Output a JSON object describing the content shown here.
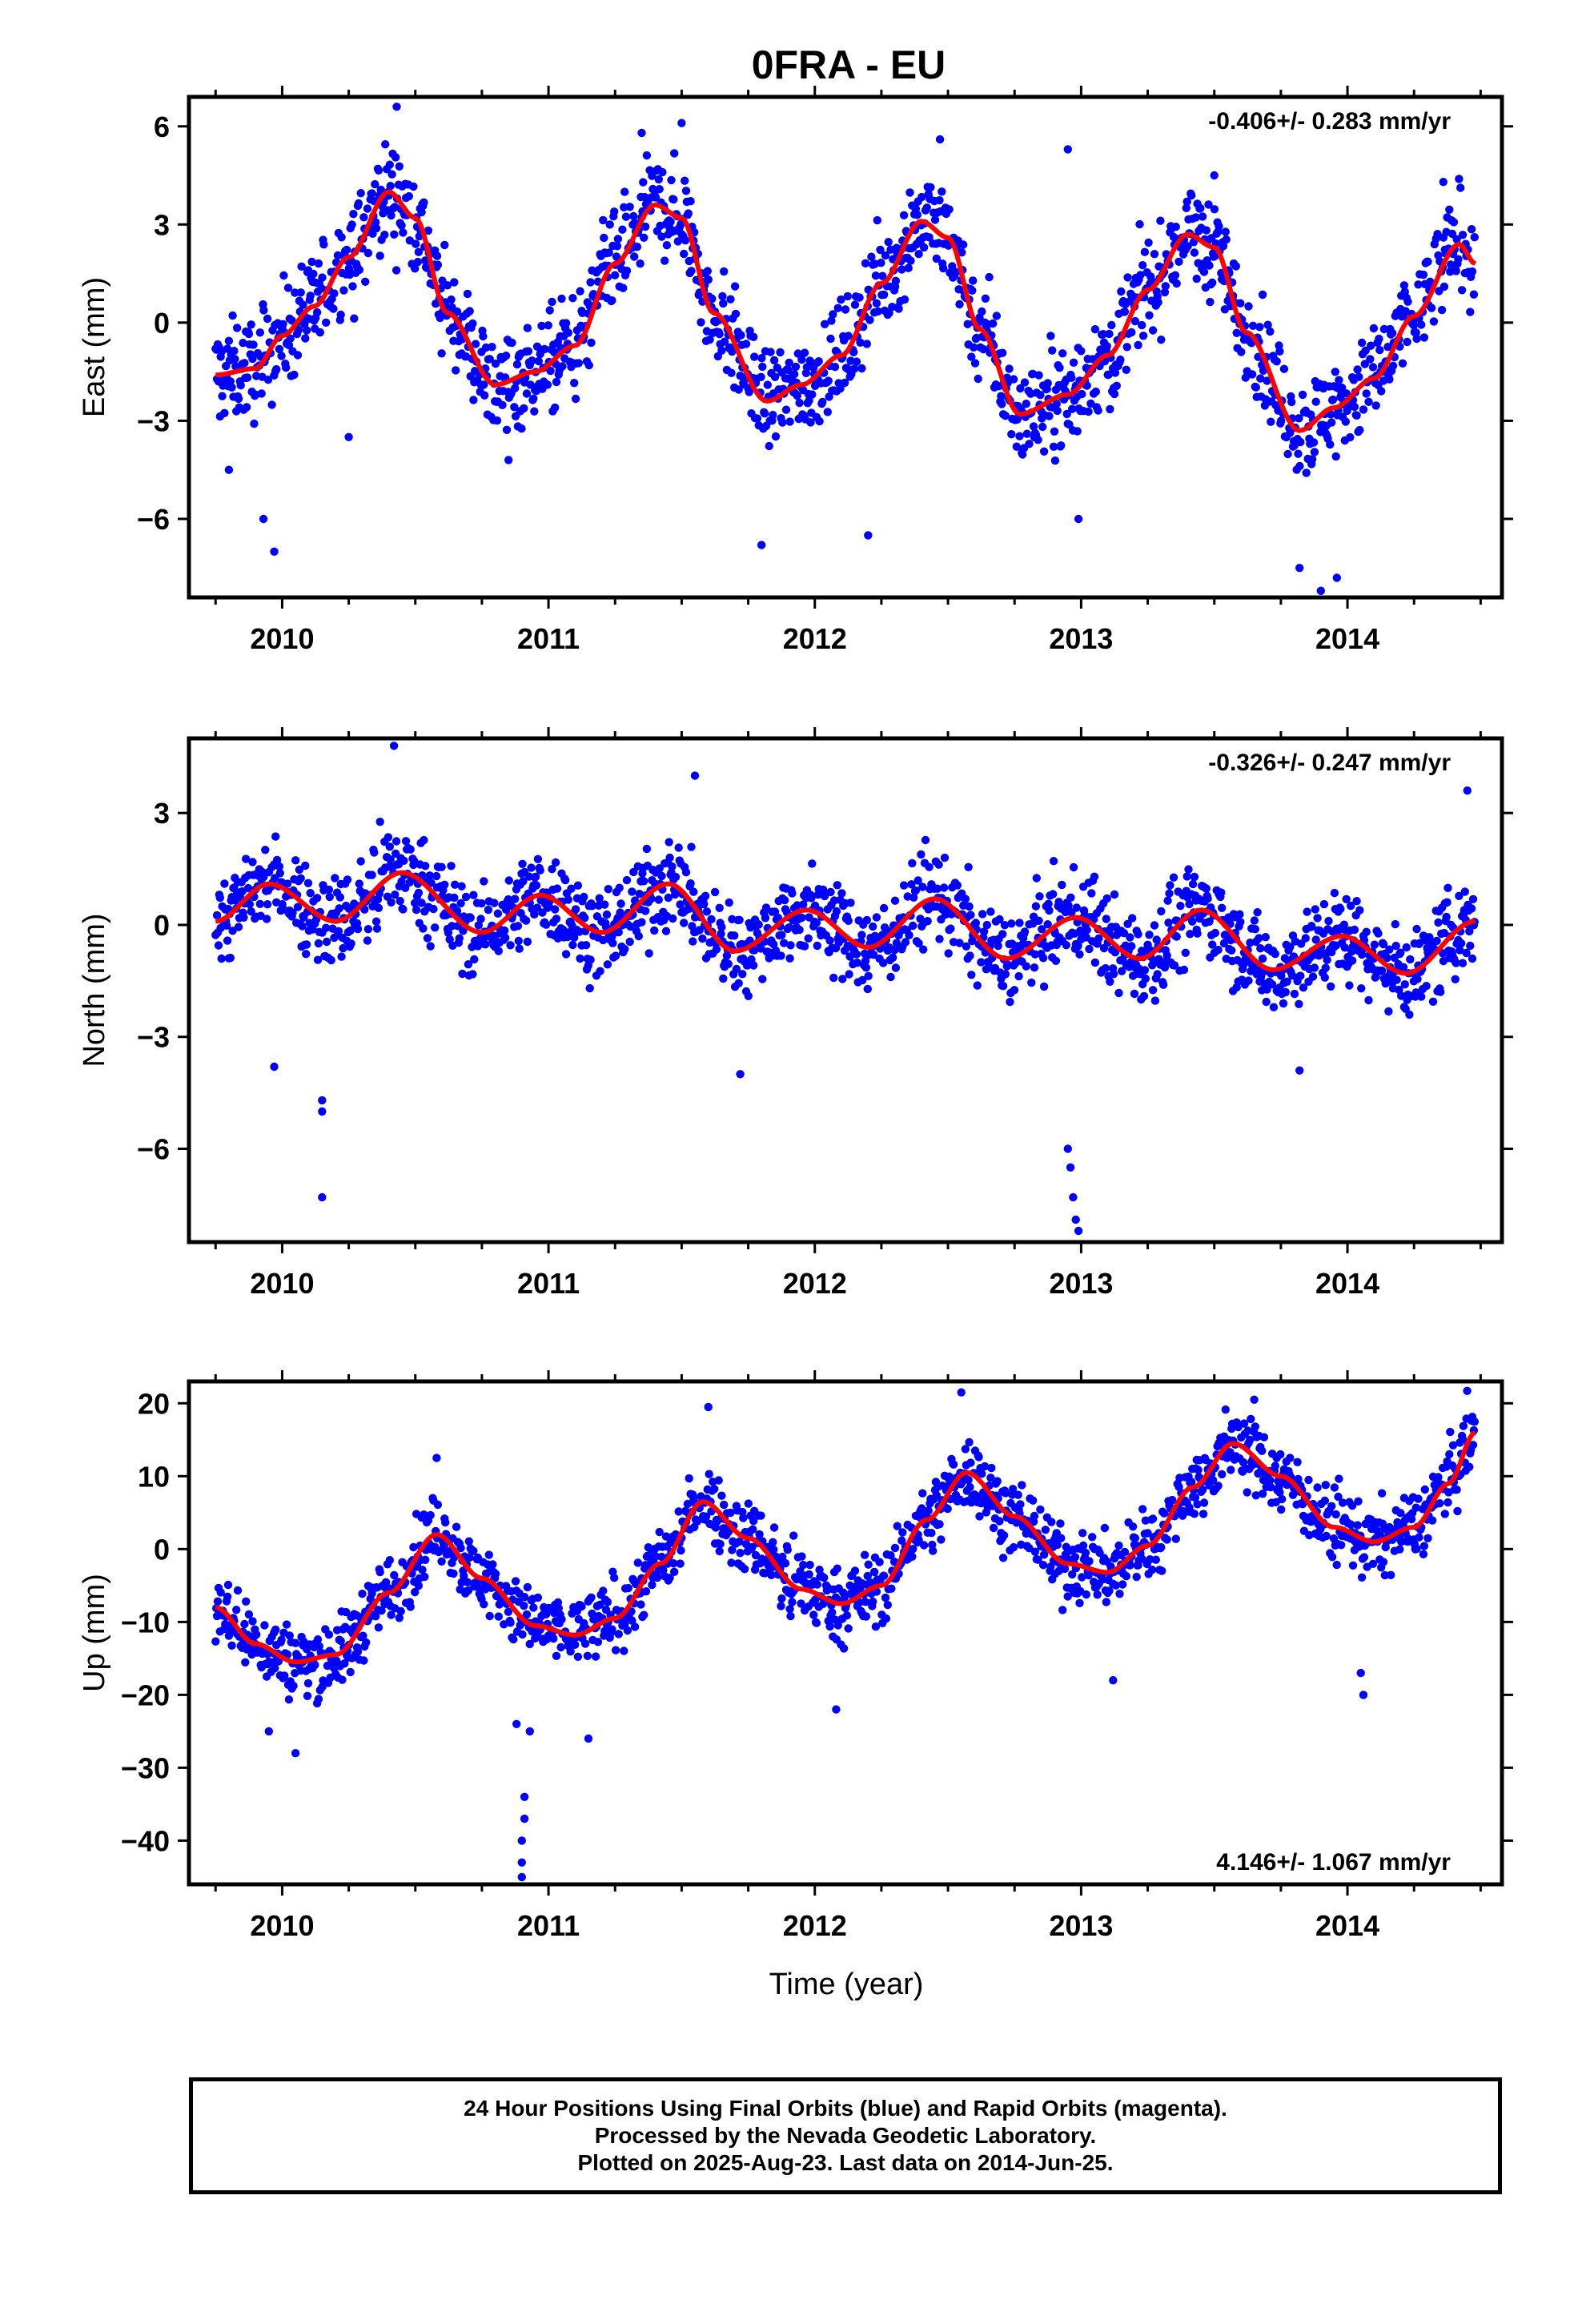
{
  "title": "0FRA - EU",
  "xlabel": "Time (year)",
  "colors": {
    "points": "#0000ff",
    "fit": "#ff0000",
    "axis": "#000000"
  },
  "footer": {
    "line1": "24 Hour Positions Using Final Orbits (blue) and Rapid Orbits (magenta).",
    "line2": "Processed by the Nevada Geodetic Laboratory.",
    "line3": "Plotted on 2025-Aug-23. Last data on 2014-Jun-25."
  },
  "chart_data": [
    {
      "type": "scatter",
      "component": "East",
      "ylabel": "East (mm)",
      "xlim": [
        2009.65,
        2014.58
      ],
      "ylim": [
        -8.4,
        6.9
      ],
      "xticks": [
        "2010",
        "2011",
        "2012",
        "2013",
        "2014"
      ],
      "yticks": [
        "6",
        "3",
        "0",
        "−3",
        "−6"
      ],
      "ytick_values": [
        6,
        3,
        0,
        -3,
        -6
      ],
      "x_start": 2009.75,
      "x_end": 2014.48,
      "rate_label": "-0.406+/- 0.283 mm/yr",
      "rate_position": "top-right",
      "fit": {
        "description": "red seasonal fit",
        "points": [
          [
            2009.75,
            -1.6
          ],
          [
            2009.9,
            -1.4
          ],
          [
            2010.0,
            -0.4
          ],
          [
            2010.12,
            0.5
          ],
          [
            2010.25,
            2.0
          ],
          [
            2010.4,
            4.0
          ],
          [
            2010.5,
            3.2
          ],
          [
            2010.62,
            0.3
          ],
          [
            2010.8,
            -1.9
          ],
          [
            2010.95,
            -1.5
          ],
          [
            2011.1,
            -0.7
          ],
          [
            2011.25,
            1.8
          ],
          [
            2011.4,
            3.6
          ],
          [
            2011.5,
            3.2
          ],
          [
            2011.62,
            0.3
          ],
          [
            2011.82,
            -2.4
          ],
          [
            2011.95,
            -1.9
          ],
          [
            2012.1,
            -1.0
          ],
          [
            2012.25,
            1.2
          ],
          [
            2012.4,
            3.1
          ],
          [
            2012.5,
            2.6
          ],
          [
            2012.62,
            -0.2
          ],
          [
            2012.77,
            -2.8
          ],
          [
            2012.95,
            -2.2
          ],
          [
            2013.1,
            -1.0
          ],
          [
            2013.25,
            1.0
          ],
          [
            2013.4,
            2.7
          ],
          [
            2013.5,
            2.3
          ],
          [
            2013.62,
            -0.3
          ],
          [
            2013.82,
            -3.3
          ],
          [
            2013.95,
            -2.6
          ],
          [
            2014.1,
            -1.7
          ],
          [
            2014.25,
            0.2
          ],
          [
            2014.42,
            2.4
          ],
          [
            2014.48,
            1.8
          ]
        ]
      },
      "points_summary": {
        "count_approx": 1700,
        "scatter_mm": 1.4,
        "outliers": [
          [
            2009.8,
            -4.5
          ],
          [
            2009.93,
            -6.0
          ],
          [
            2009.97,
            -7.0
          ],
          [
            2010.25,
            -3.5
          ],
          [
            2010.43,
            6.6
          ],
          [
            2010.85,
            -4.2
          ],
          [
            2011.35,
            5.8
          ],
          [
            2011.5,
            6.1
          ],
          [
            2011.8,
            -6.8
          ],
          [
            2012.2,
            -6.5
          ],
          [
            2012.47,
            5.6
          ],
          [
            2012.95,
            5.3
          ],
          [
            2012.99,
            -6.0
          ],
          [
            2013.5,
            4.5
          ],
          [
            2013.82,
            -7.5
          ],
          [
            2013.9,
            -8.2
          ],
          [
            2013.96,
            -7.8
          ],
          [
            2014.36,
            4.3
          ]
        ]
      }
    },
    {
      "type": "scatter",
      "component": "North",
      "ylabel": "North (mm)",
      "xlim": [
        2009.65,
        2014.58
      ],
      "ylim": [
        -8.5,
        5.0
      ],
      "xticks": [
        "2010",
        "2011",
        "2012",
        "2013",
        "2014"
      ],
      "yticks": [
        "3",
        "0",
        "−3",
        "−6"
      ],
      "ytick_values": [
        3,
        0,
        -3,
        -6
      ],
      "x_start": 2009.75,
      "x_end": 2014.48,
      "rate_label": "-0.326+/- 0.247 mm/yr",
      "rate_position": "top-right",
      "fit": {
        "description": "red seasonal fit",
        "points": [
          [
            2009.75,
            0.1
          ],
          [
            2009.95,
            1.1
          ],
          [
            2010.2,
            0.1
          ],
          [
            2010.45,
            1.4
          ],
          [
            2010.75,
            -0.2
          ],
          [
            2010.97,
            0.8
          ],
          [
            2011.2,
            -0.2
          ],
          [
            2011.45,
            1.1
          ],
          [
            2011.7,
            -0.7
          ],
          [
            2011.97,
            0.4
          ],
          [
            2012.2,
            -0.6
          ],
          [
            2012.45,
            0.7
          ],
          [
            2012.72,
            -0.9
          ],
          [
            2012.98,
            0.2
          ],
          [
            2013.22,
            -0.9
          ],
          [
            2013.45,
            0.4
          ],
          [
            2013.72,
            -1.2
          ],
          [
            2013.98,
            -0.3
          ],
          [
            2014.22,
            -1.3
          ],
          [
            2014.48,
            0.1
          ]
        ]
      },
      "points_summary": {
        "count_approx": 1700,
        "scatter_mm": 1.1,
        "outliers": [
          [
            2009.97,
            -3.8
          ],
          [
            2010.15,
            -4.7
          ],
          [
            2010.15,
            -5.0
          ],
          [
            2010.15,
            -7.3
          ],
          [
            2010.42,
            4.8
          ],
          [
            2011.55,
            4.0
          ],
          [
            2011.72,
            -4.0
          ],
          [
            2012.95,
            -6.0
          ],
          [
            2012.96,
            -6.5
          ],
          [
            2012.97,
            -7.3
          ],
          [
            2012.98,
            -7.9
          ],
          [
            2012.99,
            -8.2
          ],
          [
            2013.82,
            -3.9
          ],
          [
            2014.45,
            3.6
          ]
        ]
      }
    },
    {
      "type": "scatter",
      "component": "Up",
      "ylabel": "Up (mm)",
      "xlim": [
        2009.65,
        2014.58
      ],
      "ylim": [
        -46,
        23
      ],
      "xticks": [
        "2010",
        "2011",
        "2012",
        "2013",
        "2014"
      ],
      "yticks": [
        "20",
        "10",
        "0",
        "−10",
        "−20",
        "−30",
        "−40"
      ],
      "ytick_values": [
        20,
        10,
        0,
        -10,
        -20,
        -30,
        -40
      ],
      "x_start": 2009.75,
      "x_end": 2014.48,
      "rate_label": "4.146+/- 1.067 mm/yr",
      "rate_position": "bottom-right",
      "fit": {
        "description": "red seasonal fit",
        "points": [
          [
            2009.75,
            -8.0
          ],
          [
            2009.9,
            -13.0
          ],
          [
            2010.05,
            -15.5
          ],
          [
            2010.2,
            -14.5
          ],
          [
            2010.4,
            -6.0
          ],
          [
            2010.58,
            2.0
          ],
          [
            2010.75,
            -4.0
          ],
          [
            2010.95,
            -10.5
          ],
          [
            2011.1,
            -11.8
          ],
          [
            2011.25,
            -9.5
          ],
          [
            2011.42,
            -2.0
          ],
          [
            2011.58,
            6.5
          ],
          [
            2011.75,
            1.5
          ],
          [
            2011.95,
            -5.5
          ],
          [
            2012.1,
            -7.5
          ],
          [
            2012.25,
            -5.0
          ],
          [
            2012.42,
            4.0
          ],
          [
            2012.57,
            10.5
          ],
          [
            2012.75,
            4.5
          ],
          [
            2012.95,
            -2.0
          ],
          [
            2013.1,
            -3.2
          ],
          [
            2013.25,
            0.5
          ],
          [
            2013.42,
            8.5
          ],
          [
            2013.57,
            14.5
          ],
          [
            2013.75,
            10.0
          ],
          [
            2013.95,
            3.0
          ],
          [
            2014.1,
            1.0
          ],
          [
            2014.25,
            3.0
          ],
          [
            2014.38,
            9.0
          ],
          [
            2014.48,
            16.0
          ]
        ]
      },
      "points_summary": {
        "count_approx": 1700,
        "scatter_mm": 4.5,
        "outliers": [
          [
            2009.95,
            -25
          ],
          [
            2010.05,
            -28
          ],
          [
            2010.58,
            12.5
          ],
          [
            2010.88,
            -24
          ],
          [
            2010.91,
            -34
          ],
          [
            2010.91,
            -37
          ],
          [
            2010.9,
            -40
          ],
          [
            2010.9,
            -43
          ],
          [
            2010.9,
            -45
          ],
          [
            2010.93,
            -25
          ],
          [
            2011.15,
            -26
          ],
          [
            2011.6,
            19.5
          ],
          [
            2012.08,
            -22
          ],
          [
            2012.55,
            21.5
          ],
          [
            2013.12,
            -18
          ],
          [
            2013.65,
            20.5
          ],
          [
            2014.05,
            -17
          ],
          [
            2014.06,
            -20
          ]
        ]
      }
    }
  ]
}
